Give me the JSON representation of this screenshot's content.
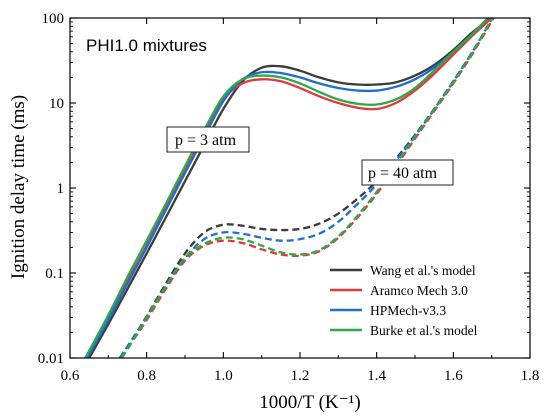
{
  "chart_data": {
    "type": "line",
    "title": "PHI1.0 mixtures",
    "xlabel": "1000/T (K⁻¹)",
    "ylabel": "Ignition delay time (ms)",
    "xlim": [
      0.6,
      1.8
    ],
    "ylim": [
      0.01,
      100
    ],
    "yscale": "log",
    "xticks": [
      "0.6",
      "0.8",
      "1.0",
      "1.2",
      "1.4",
      "1.6",
      "1.8"
    ],
    "yticks": [
      "0.01",
      "0.1",
      "1",
      "10",
      "100"
    ],
    "grid": false,
    "legend_position": "bottom-right",
    "annotations": [
      {
        "text": "p = 3 atm",
        "x": 0.905,
        "y": 3.0
      },
      {
        "text": "p = 40 atm",
        "x": 1.43,
        "y": 0.95
      }
    ],
    "series": [
      {
        "name": "Wang et al.'s model",
        "color": "#3c3c3c",
        "pressure": "3 atm",
        "dash": "solid",
        "x": [
          0.65,
          0.7,
          0.75,
          0.8,
          0.85,
          0.9,
          0.95,
          1.0,
          1.05,
          1.1,
          1.15,
          1.2,
          1.25,
          1.3,
          1.35,
          1.4,
          1.45,
          1.5,
          1.55,
          1.6,
          1.65,
          1.7
        ],
        "y": [
          0.01,
          0.025,
          0.065,
          0.17,
          0.45,
          1.2,
          3.2,
          8.5,
          18,
          26,
          27,
          24,
          20,
          17.5,
          16.5,
          16.5,
          17.5,
          21,
          28,
          42,
          68,
          100
        ]
      },
      {
        "name": "Aramco Mech 3.0",
        "color": "#e0393e",
        "pressure": "3 atm",
        "dash": "solid",
        "x": [
          0.64,
          0.7,
          0.75,
          0.8,
          0.85,
          0.9,
          0.95,
          1.0,
          1.05,
          1.1,
          1.15,
          1.2,
          1.25,
          1.3,
          1.35,
          1.4,
          1.45,
          1.5,
          1.55,
          1.6,
          1.65,
          1.7
        ],
        "y": [
          0.01,
          0.03,
          0.08,
          0.21,
          0.6,
          1.6,
          4.3,
          11,
          17,
          19,
          18,
          15,
          12,
          10,
          8.8,
          8.5,
          10,
          14,
          22,
          37,
          62,
          100
        ]
      },
      {
        "name": "HPMech-v3.3",
        "color": "#1f6fd1",
        "pressure": "3 atm",
        "dash": "solid",
        "x": [
          0.645,
          0.7,
          0.75,
          0.8,
          0.85,
          0.9,
          0.95,
          1.0,
          1.05,
          1.1,
          1.15,
          1.2,
          1.25,
          1.3,
          1.35,
          1.4,
          1.45,
          1.5,
          1.55,
          1.6,
          1.65,
          1.69
        ],
        "y": [
          0.01,
          0.028,
          0.075,
          0.2,
          0.55,
          1.5,
          4,
          10.5,
          19,
          23,
          22.5,
          20,
          17,
          15,
          14,
          14,
          15.5,
          19,
          26,
          40,
          65,
          100
        ]
      },
      {
        "name": "Burke et al.'s model",
        "color": "#2ea84a",
        "pressure": "3 atm",
        "dash": "solid",
        "x": [
          0.64,
          0.7,
          0.75,
          0.8,
          0.85,
          0.9,
          0.95,
          1.0,
          1.05,
          1.1,
          1.15,
          1.2,
          1.25,
          1.3,
          1.35,
          1.4,
          1.45,
          1.5,
          1.55,
          1.6,
          1.65,
          1.69
        ],
        "y": [
          0.01,
          0.032,
          0.09,
          0.24,
          0.65,
          1.8,
          4.8,
          12,
          19,
          21,
          20,
          17,
          13.5,
          11,
          9.8,
          9.6,
          11,
          15,
          24,
          40,
          65,
          100
        ]
      },
      {
        "name": "Wang et al.'s model",
        "color": "#3c3c3c",
        "pressure": "40 atm",
        "dash": "dashed",
        "legend": false,
        "x": [
          0.73,
          0.76,
          0.8,
          0.85,
          0.9,
          0.95,
          1.0,
          1.05,
          1.1,
          1.15,
          1.2,
          1.25,
          1.3,
          1.35,
          1.4,
          1.45,
          1.5,
          1.55,
          1.6,
          1.65,
          1.7
        ],
        "y": [
          0.01,
          0.016,
          0.031,
          0.075,
          0.17,
          0.3,
          0.37,
          0.36,
          0.33,
          0.32,
          0.33,
          0.38,
          0.5,
          0.75,
          1.2,
          2.2,
          4.2,
          8.5,
          18,
          40,
          95
        ]
      },
      {
        "name": "Aramco Mech 3.0",
        "color": "#e0393e",
        "pressure": "40 atm",
        "dash": "dashed",
        "legend": false,
        "x": [
          0.735,
          0.76,
          0.8,
          0.85,
          0.9,
          0.95,
          1.0,
          1.05,
          1.1,
          1.15,
          1.2,
          1.25,
          1.3,
          1.35,
          1.4,
          1.45,
          1.5,
          1.55,
          1.6,
          1.65,
          1.705
        ],
        "y": [
          0.01,
          0.015,
          0.028,
          0.065,
          0.14,
          0.21,
          0.24,
          0.225,
          0.19,
          0.165,
          0.16,
          0.18,
          0.26,
          0.45,
          0.85,
          1.8,
          3.8,
          8,
          17,
          38,
          100
        ]
      },
      {
        "name": "HPMech-v3.3",
        "color": "#1f6fd1",
        "pressure": "40 atm",
        "dash": "dashed",
        "legend": false,
        "x": [
          0.73,
          0.76,
          0.8,
          0.85,
          0.9,
          0.95,
          1.0,
          1.05,
          1.1,
          1.15,
          1.2,
          1.25,
          1.3,
          1.35,
          1.4,
          1.45,
          1.5,
          1.55,
          1.6,
          1.65,
          1.7
        ],
        "y": [
          0.01,
          0.016,
          0.03,
          0.07,
          0.15,
          0.25,
          0.3,
          0.29,
          0.26,
          0.24,
          0.25,
          0.29,
          0.4,
          0.65,
          1.1,
          2.1,
          4.1,
          8.4,
          18,
          40,
          97
        ]
      },
      {
        "name": "Burke et al.'s model",
        "color": "#2ea84a",
        "pressure": "40 atm",
        "dash": "dashed",
        "legend": false,
        "x": [
          0.735,
          0.76,
          0.8,
          0.85,
          0.9,
          0.95,
          1.0,
          1.05,
          1.1,
          1.15,
          1.2,
          1.25,
          1.3,
          1.35,
          1.4,
          1.45,
          1.5,
          1.55,
          1.6,
          1.65,
          1.7
        ],
        "y": [
          0.01,
          0.015,
          0.03,
          0.07,
          0.15,
          0.22,
          0.26,
          0.25,
          0.21,
          0.175,
          0.165,
          0.185,
          0.27,
          0.47,
          0.9,
          1.9,
          4,
          8.3,
          17.5,
          39,
          98
        ]
      }
    ]
  }
}
